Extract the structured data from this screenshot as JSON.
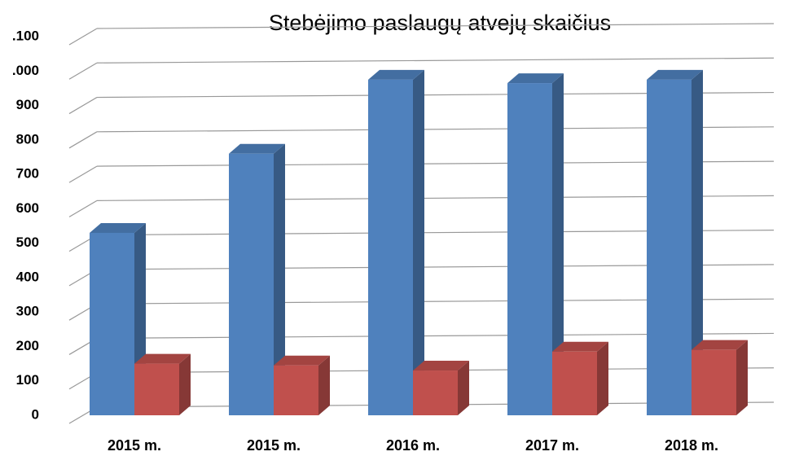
{
  "chart_data": {
    "type": "bar3d",
    "title": "Stebėjimo paslaugų atvejų skaičius",
    "categories": [
      "2015 m.",
      "2015 m.",
      "2016 m.",
      "2017 m.",
      "2018 m."
    ],
    "series": [
      {
        "color": "#4f81bd",
        "values": [
          530,
          760,
          975,
          965,
          975
        ]
      },
      {
        "color": "#c0504d",
        "values": [
          150,
          145,
          130,
          185,
          190
        ]
      }
    ],
    "ylim": [
      0,
      1100
    ],
    "yticks": [
      0,
      100,
      200,
      300,
      400,
      500,
      600,
      700,
      800,
      900,
      {
        "value": 1000,
        "label": ".000"
      },
      {
        "value": 1100,
        "label": ".100"
      }
    ],
    "grid": true
  }
}
